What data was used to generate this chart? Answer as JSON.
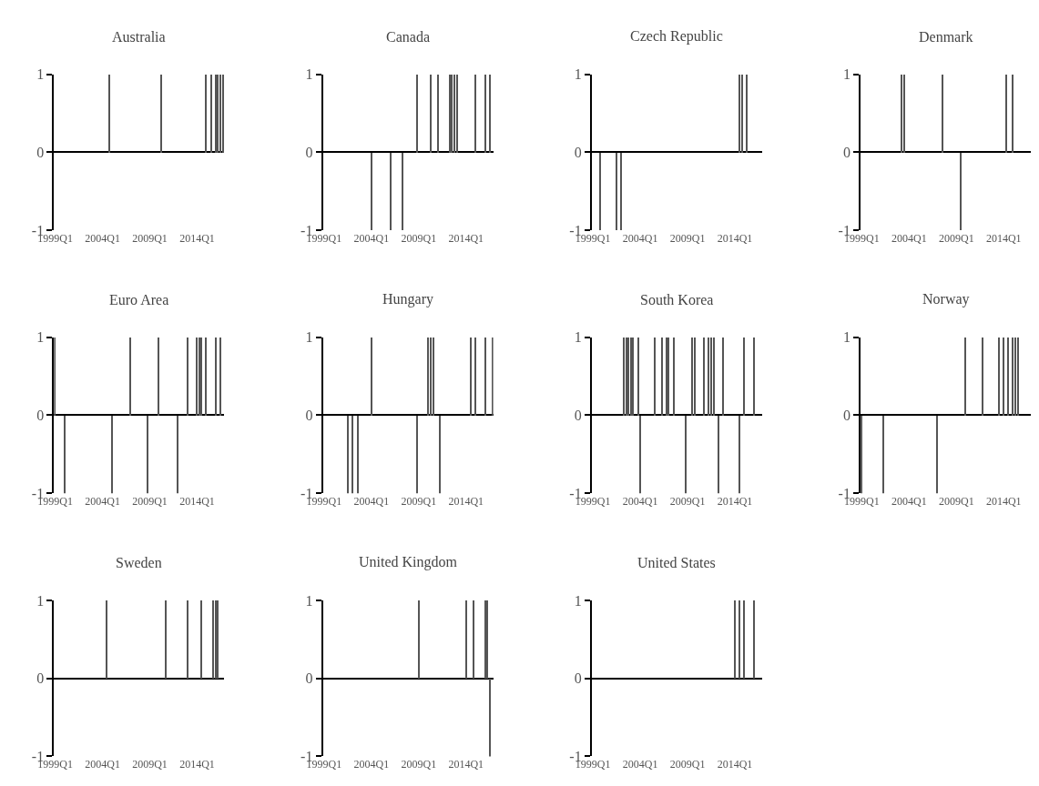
{
  "chart_data": [
    {
      "type": "bar",
      "title": "Australia",
      "color": "#555555",
      "ylim": [
        -1,
        1
      ],
      "yticks": [
        -1,
        0,
        1
      ],
      "categories": [
        "1999Q1",
        null,
        null,
        null,
        null,
        null,
        null,
        null,
        null,
        null,
        null,
        null,
        null,
        null,
        null,
        null,
        null,
        null,
        null,
        null,
        "2004Q1",
        null,
        null,
        null,
        null,
        null,
        null,
        null,
        null,
        null,
        null,
        null,
        null,
        null,
        null,
        null,
        null,
        null,
        null,
        null,
        "2009Q1",
        null,
        null,
        null,
        null,
        null,
        null,
        null,
        null,
        null,
        null,
        null,
        null,
        null,
        null,
        null,
        null,
        null,
        null,
        null,
        "2014Q1",
        null,
        null,
        null,
        null,
        null,
        null,
        null,
        null,
        null,
        null,
        null
      ],
      "values": [
        0,
        0,
        0,
        0,
        0,
        0,
        0,
        0,
        0,
        0,
        0,
        0,
        0,
        0,
        0,
        0,
        0,
        0,
        0,
        0,
        0,
        0,
        0,
        1,
        0,
        0,
        0,
        0,
        0,
        0,
        0,
        0,
        0,
        0,
        0,
        0,
        0,
        0,
        0,
        0,
        0,
        0,
        0,
        0,
        0,
        1,
        0,
        0,
        0,
        0,
        0,
        0,
        0,
        0,
        0,
        0,
        0,
        0,
        0,
        0,
        0,
        0,
        0,
        0,
        1,
        0,
        1,
        0,
        1,
        1,
        1,
        1
      ]
    },
    {
      "type": "bar",
      "title": "Canada",
      "color": "#555555",
      "ylim": [
        -1,
        1
      ],
      "yticks": [
        -1,
        0,
        1
      ],
      "categories": [
        "1999Q1",
        null,
        null,
        null,
        null,
        null,
        null,
        null,
        null,
        null,
        null,
        null,
        null,
        null,
        null,
        null,
        null,
        null,
        null,
        null,
        "2004Q1",
        null,
        null,
        null,
        null,
        null,
        null,
        null,
        null,
        null,
        null,
        null,
        null,
        null,
        null,
        null,
        null,
        null,
        null,
        null,
        "2009Q1",
        null,
        null,
        null,
        null,
        null,
        null,
        null,
        null,
        null,
        null,
        null,
        null,
        null,
        null,
        null,
        null,
        null,
        null,
        null,
        "2014Q1",
        null,
        null,
        null,
        null,
        null,
        null,
        null,
        null,
        null,
        null,
        null
      ],
      "values": [
        0,
        0,
        0,
        0,
        0,
        0,
        0,
        0,
        0,
        0,
        0,
        0,
        0,
        0,
        0,
        0,
        0,
        0,
        0,
        0,
        -1,
        0,
        0,
        0,
        0,
        0,
        0,
        0,
        -1,
        0,
        0,
        0,
        0,
        -1,
        0,
        0,
        0,
        0,
        0,
        1,
        0,
        0,
        0,
        0,
        0,
        1,
        0,
        0,
        1,
        0,
        0,
        0,
        0,
        1,
        1,
        1,
        1,
        0,
        0,
        0,
        0,
        0,
        0,
        0,
        1,
        0,
        0,
        0,
        1,
        0,
        1,
        0
      ]
    },
    {
      "type": "bar",
      "title": "Czech Republic",
      "color": "#555555",
      "ylim": [
        -1,
        1
      ],
      "yticks": [
        -1,
        0,
        1
      ],
      "categories": [
        "1999Q1",
        null,
        null,
        null,
        null,
        null,
        null,
        null,
        null,
        null,
        null,
        null,
        null,
        null,
        null,
        null,
        null,
        null,
        null,
        null,
        "2004Q1",
        null,
        null,
        null,
        null,
        null,
        null,
        null,
        null,
        null,
        null,
        null,
        null,
        null,
        null,
        null,
        null,
        null,
        null,
        null,
        "2009Q1",
        null,
        null,
        null,
        null,
        null,
        null,
        null,
        null,
        null,
        null,
        null,
        null,
        null,
        null,
        null,
        null,
        null,
        null,
        null,
        "2014Q1",
        null,
        null,
        null,
        null,
        null,
        null,
        null,
        null,
        null,
        null,
        null
      ],
      "values": [
        0,
        0,
        0,
        -1,
        0,
        0,
        0,
        0,
        0,
        0,
        -1,
        0,
        -1,
        0,
        0,
        0,
        0,
        0,
        0,
        0,
        0,
        0,
        0,
        0,
        0,
        0,
        0,
        0,
        0,
        0,
        0,
        0,
        0,
        0,
        0,
        0,
        0,
        0,
        0,
        0,
        0,
        0,
        0,
        0,
        0,
        0,
        0,
        0,
        0,
        0,
        0,
        0,
        0,
        0,
        0,
        0,
        0,
        0,
        0,
        0,
        0,
        0,
        1,
        1,
        0,
        1,
        0,
        0,
        0,
        0,
        0,
        0
      ]
    },
    {
      "type": "bar",
      "title": "Denmark",
      "color": "#555555",
      "ylim": [
        -1,
        1
      ],
      "yticks": [
        -1,
        0,
        1
      ],
      "categories": [
        "1999Q1",
        null,
        null,
        null,
        null,
        null,
        null,
        null,
        null,
        null,
        null,
        null,
        null,
        null,
        null,
        null,
        null,
        null,
        null,
        null,
        "2004Q1",
        null,
        null,
        null,
        null,
        null,
        null,
        null,
        null,
        null,
        null,
        null,
        null,
        null,
        null,
        null,
        null,
        null,
        null,
        null,
        "2009Q1",
        null,
        null,
        null,
        null,
        null,
        null,
        null,
        null,
        null,
        null,
        null,
        null,
        null,
        null,
        null,
        null,
        null,
        null,
        null,
        "2014Q1",
        null,
        null,
        null,
        null,
        null,
        null,
        null,
        null,
        null,
        null,
        null
      ],
      "values": [
        0,
        0,
        0,
        0,
        0,
        0,
        0,
        0,
        0,
        0,
        0,
        0,
        0,
        0,
        0,
        0,
        0,
        1,
        1,
        0,
        0,
        0,
        0,
        0,
        0,
        0,
        0,
        0,
        0,
        0,
        0,
        0,
        0,
        0,
        1,
        0,
        0,
        0,
        0,
        0,
        0,
        0,
        -1,
        0,
        0,
        0,
        0,
        0,
        0,
        0,
        0,
        0,
        0,
        0,
        0,
        0,
        0,
        0,
        0,
        0,
        0,
        1,
        0,
        0,
        1,
        0,
        0,
        0,
        0,
        0,
        0,
        0
      ]
    },
    {
      "type": "bar",
      "title": "Euro Area",
      "color": "#555555",
      "ylim": [
        -1,
        1
      ],
      "yticks": [
        -1,
        0,
        1
      ],
      "categories": [
        "1999Q1",
        null,
        null,
        null,
        null,
        null,
        null,
        null,
        null,
        null,
        null,
        null,
        null,
        null,
        null,
        null,
        null,
        null,
        null,
        null,
        "2004Q1",
        null,
        null,
        null,
        null,
        null,
        null,
        null,
        null,
        null,
        null,
        null,
        null,
        null,
        null,
        null,
        null,
        null,
        null,
        null,
        "2009Q1",
        null,
        null,
        null,
        null,
        null,
        null,
        null,
        null,
        null,
        null,
        null,
        null,
        null,
        null,
        null,
        null,
        null,
        null,
        null,
        "2014Q1",
        null,
        null,
        null,
        null,
        null,
        null,
        null,
        null,
        null,
        null,
        null
      ],
      "values": [
        1,
        0,
        0,
        0,
        -1,
        0,
        0,
        0,
        0,
        0,
        0,
        0,
        0,
        0,
        0,
        0,
        0,
        0,
        0,
        0,
        0,
        0,
        0,
        0,
        -1,
        0,
        0,
        0,
        0,
        0,
        0,
        0,
        1,
        0,
        0,
        0,
        0,
        0,
        0,
        -1,
        0,
        0,
        0,
        0,
        1,
        0,
        0,
        0,
        0,
        0,
        0,
        0,
        -1,
        0,
        0,
        0,
        1,
        0,
        0,
        0,
        1,
        1,
        1,
        0,
        1,
        0,
        0,
        0,
        1,
        0,
        1,
        0
      ]
    },
    {
      "type": "bar",
      "title": "Hungary",
      "color": "#555555",
      "ylim": [
        -1,
        1
      ],
      "yticks": [
        -1,
        0,
        1
      ],
      "categories": [
        "1999Q1",
        null,
        null,
        null,
        null,
        null,
        null,
        null,
        null,
        null,
        null,
        null,
        null,
        null,
        null,
        null,
        null,
        null,
        null,
        null,
        "2004Q1",
        null,
        null,
        null,
        null,
        null,
        null,
        null,
        null,
        null,
        null,
        null,
        null,
        null,
        null,
        null,
        null,
        null,
        null,
        null,
        "2009Q1",
        null,
        null,
        null,
        null,
        null,
        null,
        null,
        null,
        null,
        null,
        null,
        null,
        null,
        null,
        null,
        null,
        null,
        null,
        null,
        "2014Q1",
        null,
        null,
        null,
        null,
        null,
        null,
        null,
        null,
        null,
        null,
        null
      ],
      "values": [
        0,
        0,
        0,
        0,
        0,
        0,
        0,
        0,
        0,
        0,
        -1,
        0,
        -1,
        0,
        -1,
        0,
        0,
        0,
        0,
        0,
        1,
        0,
        0,
        0,
        0,
        0,
        0,
        0,
        0,
        0,
        0,
        0,
        0,
        0,
        0,
        0,
        0,
        0,
        0,
        -1,
        0,
        0,
        0,
        0,
        1,
        1,
        1,
        0,
        0,
        -1,
        0,
        0,
        0,
        0,
        0,
        0,
        0,
        0,
        0,
        0,
        0,
        0,
        1,
        0,
        1,
        0,
        0,
        0,
        1,
        0,
        0,
        1
      ]
    },
    {
      "type": "bar",
      "title": "South Korea",
      "color": "#555555",
      "ylim": [
        -1,
        1
      ],
      "yticks": [
        -1,
        0,
        1
      ],
      "categories": [
        "1999Q1",
        null,
        null,
        null,
        null,
        null,
        null,
        null,
        null,
        null,
        null,
        null,
        null,
        null,
        null,
        null,
        null,
        null,
        null,
        null,
        "2004Q1",
        null,
        null,
        null,
        null,
        null,
        null,
        null,
        null,
        null,
        null,
        null,
        null,
        null,
        null,
        null,
        null,
        null,
        null,
        null,
        "2009Q1",
        null,
        null,
        null,
        null,
        null,
        null,
        null,
        null,
        null,
        null,
        null,
        null,
        null,
        null,
        null,
        null,
        null,
        null,
        null,
        "2014Q1",
        null,
        null,
        null,
        null,
        null,
        null,
        null,
        null,
        null,
        null,
        null
      ],
      "values": [
        0,
        0,
        0,
        0,
        0,
        0,
        0,
        0,
        0,
        0,
        0,
        0,
        0,
        1,
        1,
        1,
        1,
        1,
        0,
        1,
        -1,
        0,
        0,
        0,
        0,
        0,
        1,
        0,
        0,
        1,
        0,
        1,
        1,
        0,
        1,
        0,
        0,
        0,
        0,
        -1,
        0,
        0,
        1,
        1,
        0,
        0,
        0,
        1,
        0,
        1,
        1,
        1,
        0,
        -1,
        0,
        1,
        0,
        0,
        0,
        0,
        0,
        0,
        -1,
        0,
        1,
        0,
        0,
        0,
        1,
        0,
        0,
        0
      ]
    },
    {
      "type": "bar",
      "title": "Norway",
      "color": "#555555",
      "ylim": [
        -1,
        1
      ],
      "yticks": [
        -1,
        0,
        1
      ],
      "categories": [
        "1999Q1",
        null,
        null,
        null,
        null,
        null,
        null,
        null,
        null,
        null,
        null,
        null,
        null,
        null,
        null,
        null,
        null,
        null,
        null,
        null,
        "2004Q1",
        null,
        null,
        null,
        null,
        null,
        null,
        null,
        null,
        null,
        null,
        null,
        null,
        null,
        null,
        null,
        null,
        null,
        null,
        null,
        "2009Q1",
        null,
        null,
        null,
        null,
        null,
        null,
        null,
        null,
        null,
        null,
        null,
        null,
        null,
        null,
        null,
        null,
        null,
        null,
        null,
        "2014Q1",
        null,
        null,
        null,
        null,
        null,
        null,
        null,
        null,
        null,
        null,
        null
      ],
      "values": [
        -1,
        0,
        0,
        0,
        0,
        0,
        0,
        0,
        0,
        -1,
        0,
        0,
        0,
        0,
        0,
        0,
        0,
        0,
        0,
        0,
        0,
        0,
        0,
        0,
        0,
        0,
        0,
        0,
        0,
        0,
        0,
        0,
        -1,
        0,
        0,
        0,
        0,
        0,
        0,
        0,
        0,
        0,
        0,
        0,
        1,
        0,
        0,
        0,
        0,
        0,
        0,
        1,
        0,
        0,
        0,
        0,
        0,
        0,
        1,
        0,
        1,
        0,
        1,
        0,
        1,
        1,
        1,
        0,
        0,
        0,
        0,
        0
      ]
    },
    {
      "type": "bar",
      "title": "Sweden",
      "color": "#555555",
      "ylim": [
        -1,
        1
      ],
      "yticks": [
        -1,
        0,
        1
      ],
      "categories": [
        "1999Q1",
        null,
        null,
        null,
        null,
        null,
        null,
        null,
        null,
        null,
        null,
        null,
        null,
        null,
        null,
        null,
        null,
        null,
        null,
        null,
        "2004Q1",
        null,
        null,
        null,
        null,
        null,
        null,
        null,
        null,
        null,
        null,
        null,
        null,
        null,
        null,
        null,
        null,
        null,
        null,
        null,
        "2009Q1",
        null,
        null,
        null,
        null,
        null,
        null,
        null,
        null,
        null,
        null,
        null,
        null,
        null,
        null,
        null,
        null,
        null,
        null,
        null,
        "2014Q1",
        null,
        null,
        null,
        null,
        null,
        null,
        null,
        null,
        null,
        null,
        null
      ],
      "values": [
        0,
        0,
        0,
        0,
        0,
        0,
        0,
        0,
        0,
        0,
        0,
        0,
        0,
        0,
        0,
        0,
        0,
        0,
        0,
        0,
        0,
        0,
        1,
        0,
        0,
        0,
        0,
        0,
        0,
        0,
        0,
        0,
        0,
        0,
        0,
        0,
        0,
        0,
        0,
        0,
        0,
        0,
        0,
        0,
        0,
        0,
        0,
        1,
        0,
        0,
        0,
        0,
        0,
        0,
        0,
        0,
        1,
        0,
        0,
        0,
        0,
        0,
        1,
        0,
        0,
        0,
        0,
        1,
        1,
        1,
        0,
        0
      ]
    },
    {
      "type": "bar",
      "title": "United Kingdom",
      "color": "#555555",
      "ylim": [
        -1,
        1
      ],
      "yticks": [
        -1,
        0,
        1
      ],
      "categories": [
        "1999Q1",
        null,
        null,
        null,
        null,
        null,
        null,
        null,
        null,
        null,
        null,
        null,
        null,
        null,
        null,
        null,
        null,
        null,
        null,
        null,
        "2004Q1",
        null,
        null,
        null,
        null,
        null,
        null,
        null,
        null,
        null,
        null,
        null,
        null,
        null,
        null,
        null,
        null,
        null,
        null,
        null,
        "2009Q1",
        null,
        null,
        null,
        null,
        null,
        null,
        null,
        null,
        null,
        null,
        null,
        null,
        null,
        null,
        null,
        null,
        null,
        null,
        null,
        "2014Q1",
        null,
        null,
        null,
        null,
        null,
        null,
        null,
        null,
        null,
        null,
        null
      ],
      "values": [
        0,
        0,
        0,
        0,
        0,
        0,
        0,
        0,
        0,
        0,
        0,
        0,
        0,
        0,
        0,
        0,
        0,
        0,
        0,
        0,
        0,
        0,
        0,
        0,
        0,
        0,
        0,
        0,
        0,
        0,
        0,
        0,
        0,
        0,
        0,
        0,
        0,
        0,
        0,
        0,
        1,
        0,
        0,
        0,
        0,
        0,
        0,
        0,
        0,
        0,
        0,
        0,
        0,
        0,
        0,
        0,
        0,
        0,
        0,
        0,
        1,
        0,
        0,
        1,
        0,
        0,
        0,
        0,
        1,
        1,
        -1,
        0
      ]
    },
    {
      "type": "bar",
      "title": "United States",
      "color": "#555555",
      "ylim": [
        -1,
        1
      ],
      "yticks": [
        -1,
        0,
        1
      ],
      "categories": [
        "1999Q1",
        null,
        null,
        null,
        null,
        null,
        null,
        null,
        null,
        null,
        null,
        null,
        null,
        null,
        null,
        null,
        null,
        null,
        null,
        null,
        "2004Q1",
        null,
        null,
        null,
        null,
        null,
        null,
        null,
        null,
        null,
        null,
        null,
        null,
        null,
        null,
        null,
        null,
        null,
        null,
        null,
        "2009Q1",
        null,
        null,
        null,
        null,
        null,
        null,
        null,
        null,
        null,
        null,
        null,
        null,
        null,
        null,
        null,
        null,
        null,
        null,
        null,
        "2014Q1",
        null,
        null,
        null,
        null,
        null,
        null,
        null,
        null,
        null,
        null,
        null
      ],
      "values": [
        0,
        0,
        0,
        0,
        0,
        0,
        0,
        0,
        0,
        0,
        0,
        0,
        0,
        0,
        0,
        0,
        0,
        0,
        0,
        0,
        0,
        0,
        0,
        0,
        0,
        0,
        0,
        0,
        0,
        0,
        0,
        0,
        0,
        0,
        0,
        0,
        0,
        0,
        0,
        0,
        0,
        0,
        0,
        0,
        0,
        0,
        0,
        0,
        0,
        0,
        0,
        0,
        0,
        0,
        0,
        0,
        0,
        0,
        0,
        0,
        1,
        0,
        1,
        0,
        1,
        0,
        0,
        0,
        1,
        0,
        0,
        0
      ]
    }
  ]
}
